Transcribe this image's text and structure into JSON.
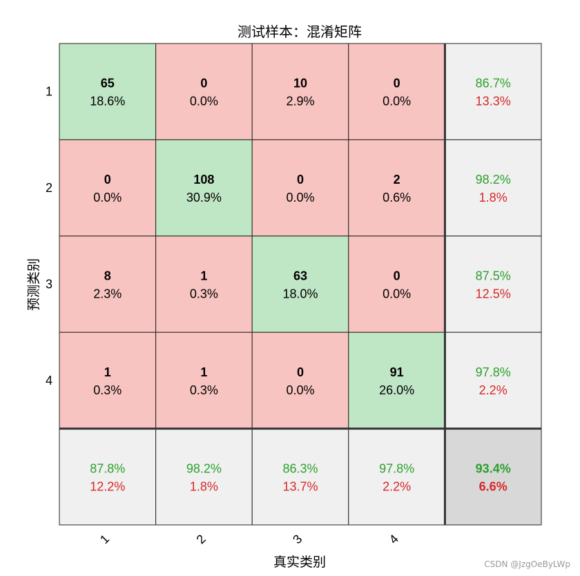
{
  "chart_data": {
    "type": "heatmap",
    "title": "测试样本：混淆矩阵",
    "xlabel": "真实类别",
    "ylabel": "预测类别",
    "row_labels": [
      "1",
      "2",
      "3",
      "4"
    ],
    "col_labels": [
      "1",
      "2",
      "3",
      "4"
    ],
    "matrix": [
      {
        "counts": [
          "65",
          "0",
          "10",
          "0"
        ],
        "percents": [
          "18.6%",
          "0.0%",
          "2.9%",
          "0.0%"
        ]
      },
      {
        "counts": [
          "0",
          "108",
          "0",
          "2"
        ],
        "percents": [
          "0.0%",
          "30.9%",
          "0.0%",
          "0.6%"
        ]
      },
      {
        "counts": [
          "8",
          "1",
          "63",
          "0"
        ],
        "percents": [
          "2.3%",
          "0.3%",
          "18.0%",
          "0.0%"
        ]
      },
      {
        "counts": [
          "1",
          "1",
          "0",
          "91"
        ],
        "percents": [
          "0.3%",
          "0.3%",
          "0.0%",
          "26.0%"
        ]
      }
    ],
    "row_summary": [
      {
        "correct": "86.7%",
        "wrong": "13.3%"
      },
      {
        "correct": "98.2%",
        "wrong": "1.8%"
      },
      {
        "correct": "87.5%",
        "wrong": "12.5%"
      },
      {
        "correct": "97.8%",
        "wrong": "2.2%"
      }
    ],
    "col_summary": [
      {
        "correct": "87.8%",
        "wrong": "12.2%"
      },
      {
        "correct": "98.2%",
        "wrong": "1.8%"
      },
      {
        "correct": "86.3%",
        "wrong": "13.7%"
      },
      {
        "correct": "97.8%",
        "wrong": "2.2%"
      }
    ],
    "overall": {
      "correct": "93.4%",
      "wrong": "6.6%"
    },
    "colors": {
      "diagonal": "#bfe6c5",
      "off_diagonal": "#f8c4c1",
      "summary": "#f0f0f0",
      "overall": "#d8d8d8",
      "correct_text": "#2ca02c",
      "wrong_text": "#d62728"
    }
  },
  "watermark": "CSDN @JzgOeByLWp"
}
